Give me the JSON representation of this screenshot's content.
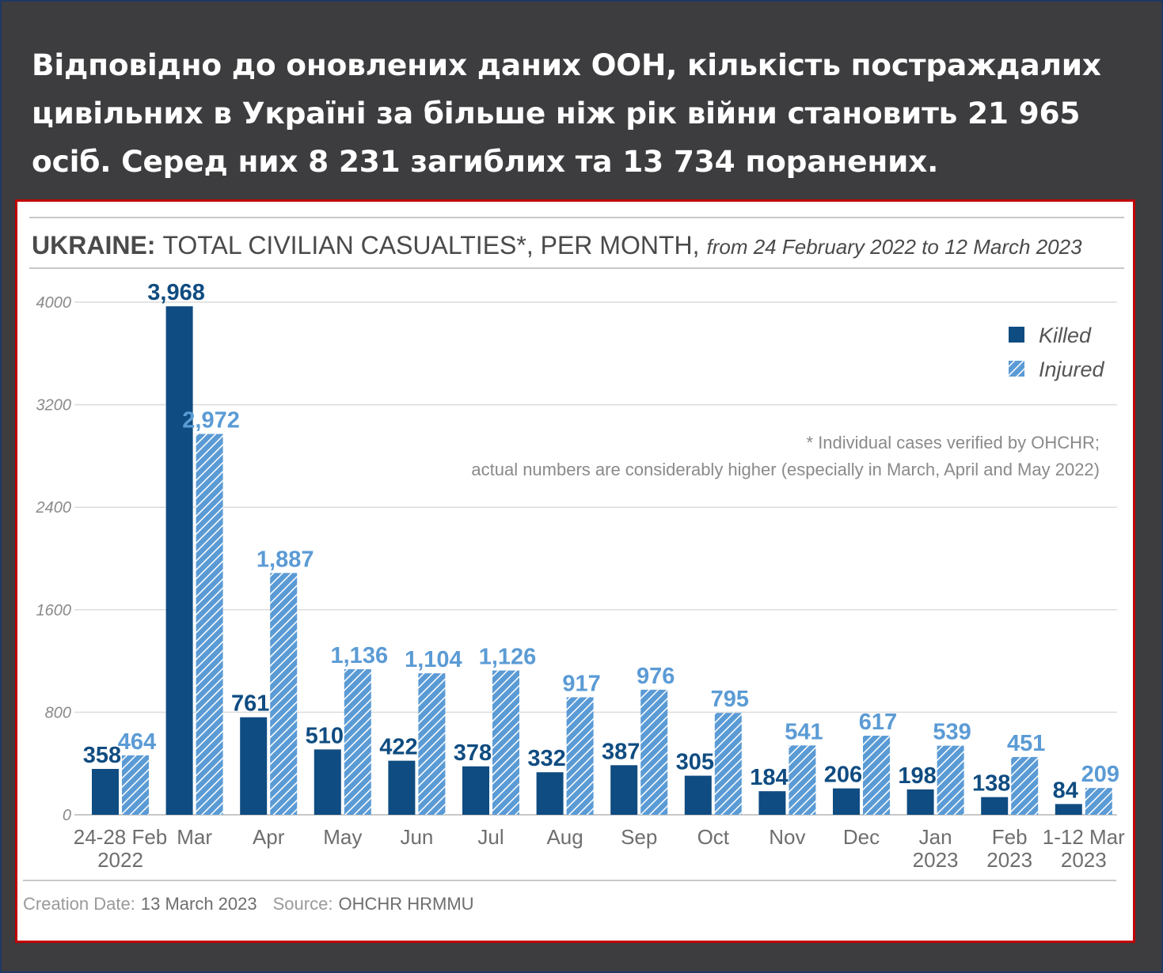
{
  "headline": "Відповідно до оновлених даних ООН, кількість постраждалих цивільних в Україні за більше ніж рік війни становить 21 965 осіб. Серед них 8 231 загиблих та 13 734 поранених.",
  "chart_data": {
    "type": "bar",
    "title_bold": "UKRAINE:",
    "title_main": "TOTAL CIVILIAN CASUALTIES*, PER MONTH,",
    "title_italic": "from 24 February 2022 to 12 March 2023",
    "categories": [
      [
        "24-28 Feb",
        "2022"
      ],
      [
        "Mar"
      ],
      [
        "Apr"
      ],
      [
        "May"
      ],
      [
        "Jun"
      ],
      [
        "Jul"
      ],
      [
        "Aug"
      ],
      [
        "Sep"
      ],
      [
        "Oct"
      ],
      [
        "Nov"
      ],
      [
        "Dec"
      ],
      [
        "Jan",
        "2023"
      ],
      [
        "Feb",
        "2023"
      ],
      [
        "1-12 Mar",
        "2023"
      ]
    ],
    "series": [
      {
        "name": "Killed",
        "values": [
          358,
          3968,
          761,
          510,
          422,
          378,
          332,
          387,
          305,
          184,
          206,
          198,
          138,
          84
        ],
        "labels": [
          "358",
          "3,968",
          "761",
          "510",
          "422",
          "378",
          "332",
          "387",
          "305",
          "184",
          "206",
          "198",
          "138",
          "84"
        ]
      },
      {
        "name": "Injured",
        "values": [
          464,
          2972,
          1887,
          1136,
          1104,
          1126,
          917,
          976,
          795,
          541,
          617,
          539,
          451,
          209
        ],
        "labels": [
          "464",
          "2,972",
          "1,887",
          "1,136",
          "1,104",
          "1,126",
          "917",
          "976",
          "795",
          "541",
          "617",
          "539",
          "451",
          "209"
        ]
      }
    ],
    "yticks": [
      0,
      800,
      1600,
      2400,
      3200,
      4000
    ],
    "ylim": [
      0,
      4000
    ],
    "grid": true,
    "legend_position": "top-right",
    "note_lines": [
      "* Individual cases verified by OHCHR;",
      "actual numbers are considerably higher (especially in March, April and May 2022)"
    ],
    "colors": {
      "killed": "#0f4c81",
      "injured": "#5b9bd5"
    },
    "footer": {
      "creation_label": "Creation Date:",
      "creation_value": "13 March 2023",
      "source_label": "Source:",
      "source_value": "OHCHR HRMMU"
    }
  }
}
